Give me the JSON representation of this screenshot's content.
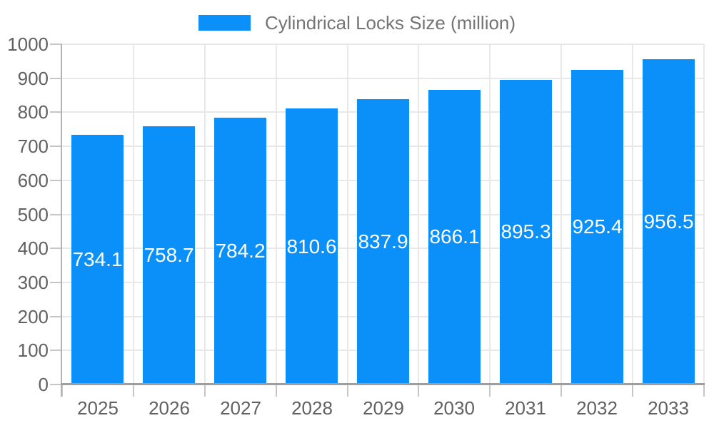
{
  "chart_data": {
    "type": "bar",
    "title": "Cylindrical Locks Size (million)",
    "legend": {
      "label": "Cylindrical Locks Size (million)",
      "position": "top"
    },
    "categories": [
      "2025",
      "2026",
      "2027",
      "2028",
      "2029",
      "2030",
      "2031",
      "2032",
      "2033"
    ],
    "values": [
      734.1,
      758.7,
      784.2,
      810.6,
      837.9,
      866.1,
      895.3,
      925.4,
      956.5
    ],
    "value_labels": [
      "734.1",
      "758.7",
      "784.2",
      "810.6",
      "837.9",
      "866.1",
      "895.3",
      "925.4",
      "956.5"
    ],
    "xlabel": "",
    "ylabel": "",
    "ylim": [
      0,
      1000
    ],
    "ytick_step": 100,
    "ytick_labels": [
      "0",
      "100",
      "200",
      "300",
      "400",
      "500",
      "600",
      "700",
      "800",
      "900",
      "1000"
    ],
    "grid": true,
    "colors": {
      "bar": "#0a90f8",
      "value_label": "#ffffff",
      "axis_text": "#616161",
      "legend_text": "#757575",
      "gridline": "#e8e8e8",
      "y_axis_line": "#b3b3b3",
      "x_axis_line": "#9e9e9e",
      "tick": "#c6c6c6",
      "background": "#ffffff"
    }
  }
}
